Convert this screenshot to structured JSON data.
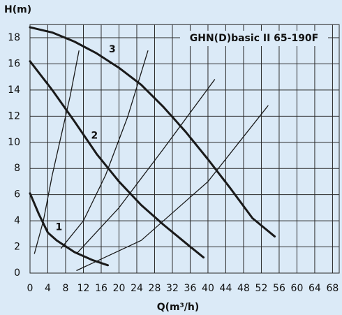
{
  "chart_data": {
    "type": "line",
    "title": "GHN(D)basic II 65-190F",
    "x_label": "Q(m³/h)",
    "y_label": "H(m)",
    "xlim": [
      0,
      69.5
    ],
    "ylim": [
      0,
      19
    ],
    "xticks": [
      0,
      4,
      8,
      12,
      16,
      20,
      24,
      28,
      32,
      36,
      40,
      44,
      48,
      52,
      56,
      60,
      64,
      68
    ],
    "yticks": [
      0,
      2,
      4,
      6,
      8,
      10,
      12,
      14,
      16,
      18
    ],
    "grid": true,
    "series": [
      {
        "name": "1",
        "color": "#1a1a1a",
        "x": [
          0,
          2,
          4,
          6,
          10,
          14,
          17.5
        ],
        "values": [
          6.1,
          4.5,
          3.1,
          2.5,
          1.6,
          1,
          0.6
        ]
      },
      {
        "name": "2",
        "color": "#1a1a1a",
        "x": [
          0,
          5,
          10,
          15,
          20,
          25,
          30,
          35,
          39
        ],
        "values": [
          16.2,
          14,
          11.6,
          9.1,
          7,
          5.2,
          3.7,
          2.3,
          1.2
        ]
      },
      {
        "name": "3",
        "color": "#1a1a1a",
        "x": [
          0,
          5,
          10,
          15,
          20,
          25,
          30,
          35,
          40,
          45,
          50,
          55
        ],
        "values": [
          18.8,
          18.4,
          17.7,
          16.8,
          15.7,
          14.4,
          12.7,
          10.8,
          8.7,
          6.5,
          4.2,
          2.8
        ]
      },
      {
        "color": "#1a1a1a",
        "x": [
          1,
          3,
          5,
          7,
          9,
          11
        ],
        "values": [
          1.5,
          4,
          7.5,
          10.5,
          13.5,
          17
        ]
      },
      {
        "color": "#1a1a1a",
        "x": [
          7,
          12,
          17,
          22,
          26.5
        ],
        "values": [
          1.9,
          4,
          7.5,
          12,
          17
        ]
      },
      {
        "color": "#1a1a1a",
        "x": [
          10.5,
          20,
          30,
          41.5
        ],
        "values": [
          1.5,
          5,
          9.5,
          14.8
        ]
      },
      {
        "color": "#1a1a1a",
        "x": [
          10.5,
          25,
          40,
          53.5
        ],
        "values": [
          0.2,
          2.5,
          7,
          12.8
        ]
      }
    ]
  }
}
